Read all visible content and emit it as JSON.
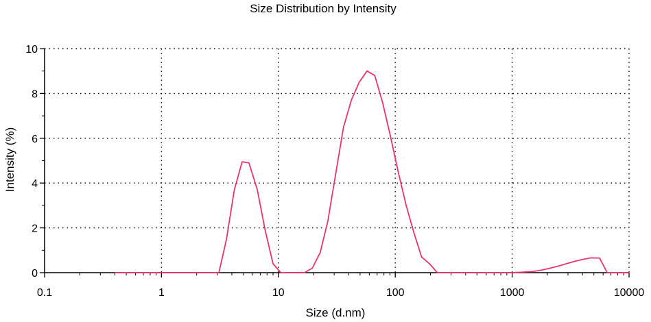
{
  "chart_data": {
    "type": "line",
    "title": "Size Distribution by Intensity",
    "xlabel": "Size (d.nm)",
    "ylabel": "Intensity (%)",
    "xscale": "log",
    "xlim": [
      0.1,
      10000
    ],
    "ylim": [
      0,
      10
    ],
    "xticks": [
      0.1,
      1,
      10,
      100,
      1000,
      10000
    ],
    "xtick_labels": [
      "0.1",
      "1",
      "10",
      "100",
      "1000",
      "10000"
    ],
    "yticks": [
      0,
      2,
      4,
      6,
      8,
      10
    ],
    "ytick_labels": [
      "0",
      "2",
      "4",
      "6",
      "8",
      "10"
    ],
    "grid": true,
    "legend": "none",
    "series": [
      {
        "color": "#e8336b",
        "x": [
          0.4,
          0.8,
          1.5,
          2.5,
          3.1,
          3.6,
          4.2,
          4.9,
          5.6,
          6.6,
          7.7,
          9.0,
          10.5,
          12.3,
          14.3,
          16.7,
          19.5,
          22.8,
          26.5,
          30.9,
          36.1,
          42.1,
          49.1,
          57.3,
          66.8,
          77.9,
          90.9,
          106,
          124,
          144,
          168,
          196,
          229,
          300,
          500,
          1000,
          1500,
          1800,
          2100,
          2500,
          3000,
          3500,
          4100,
          4700,
          5600,
          6500,
          10000
        ],
        "y": [
          0,
          0,
          0,
          0,
          0,
          1.5,
          3.7,
          4.95,
          4.9,
          3.7,
          1.9,
          0.4,
          0,
          0,
          0,
          0,
          0.2,
          0.9,
          2.3,
          4.4,
          6.5,
          7.7,
          8.5,
          9.0,
          8.8,
          7.6,
          6.1,
          4.5,
          3.0,
          1.8,
          0.7,
          0.4,
          0,
          0,
          0,
          0,
          0.05,
          0.12,
          0.2,
          0.3,
          0.42,
          0.52,
          0.6,
          0.66,
          0.65,
          0,
          0
        ]
      }
    ]
  }
}
